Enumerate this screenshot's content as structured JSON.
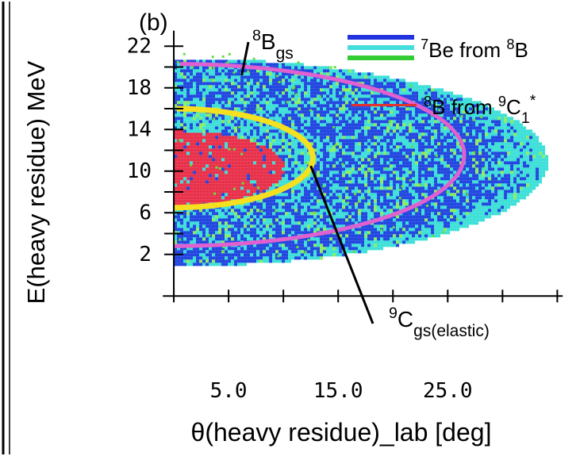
{
  "panel_label": "(b)",
  "chart_data": {
    "type": "scatter",
    "xlabel": "θ(heavy residue)_lab  [deg]",
    "ylabel": "E(heavy residue)  MeV",
    "xlim": [
      -5,
      37
    ],
    "ylim": [
      -8,
      24
    ],
    "x_tick_labels": [
      {
        "x": 5,
        "label": "5.0"
      },
      {
        "x": 15,
        "label": "15.0"
      },
      {
        "x": 25,
        "label": "25.0"
      }
    ],
    "y_tick_labels": [
      {
        "y": 2,
        "label": "2"
      },
      {
        "y": 6,
        "label": "6"
      },
      {
        "y": 10,
        "label": "10"
      },
      {
        "y": 14,
        "label": "14"
      },
      {
        "y": 18,
        "label": "18"
      },
      {
        "y": 22,
        "label": "22"
      }
    ],
    "x_minor_ticks": [
      0,
      5,
      10,
      15,
      20,
      25,
      30,
      35
    ],
    "y_minor_ticks": [
      2,
      4,
      6,
      8,
      10,
      12,
      14,
      16,
      18,
      20,
      22
    ],
    "legend": [
      {
        "mass": "7",
        "symbol": "Be",
        "text": " from ",
        "mass2": "8",
        "symbol2": "B",
        "colors": [
          "#2233dd",
          "#44dddd",
          "#33cc33"
        ]
      },
      {
        "mass": "8",
        "symbol": "B",
        "text": " from ",
        "mass2": "9",
        "symbol2": "C",
        "sub2": "1",
        "sup2": "*",
        "colors": [
          "#e53030"
        ]
      }
    ],
    "legend_placement": "top-right",
    "series": [
      {
        "name": "7Be from 8B (blue)",
        "color": "#2246e0",
        "region": {
          "x_max": 32.5,
          "y_min": 1.8,
          "y_max": 20.4
        }
      },
      {
        "name": "7Be from 8B (cyan)",
        "color": "#3de0d8",
        "region": {
          "x_max": 34.0,
          "y_min": 1.0,
          "y_max": 21.0
        }
      },
      {
        "name": "8B from 9C1* (red)",
        "color": "#e8304a",
        "region": {
          "x_max": 10.0,
          "y_min": 6.8,
          "y_max": 14.0
        }
      }
    ],
    "curves": [
      {
        "name": "8Bgs",
        "color": "#e060d0",
        "x_max": 26.5,
        "y_top": 20.3,
        "y_bottom": 2.8
      },
      {
        "name": "9Cgs(elastic)",
        "color": "#f4e020",
        "x_max": 12.7,
        "y_top": 16.0,
        "y_bottom": 6.5
      }
    ],
    "annotations": [
      {
        "mass": "8",
        "symbol": "B",
        "sub": "gs",
        "x": 6.2,
        "y": 19.2
      },
      {
        "mass": "9",
        "symbol": "C",
        "sub": "gs(elastic)",
        "x": 12.5,
        "y": 10.5
      }
    ],
    "grid": false
  }
}
